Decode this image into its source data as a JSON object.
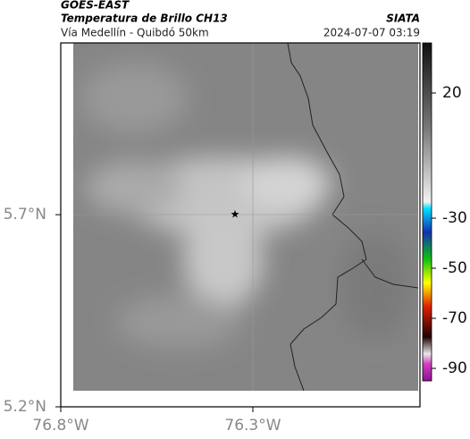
{
  "header": {
    "title": "GOES-EAST",
    "subtitle": "Temperatura de Brillo CH13",
    "source": "SIATA",
    "route": "Vía Medellín - Quibdó 50km",
    "datetime": "2024-07-07 03:19"
  },
  "map": {
    "lat_range": [
      5.2,
      6.147
    ],
    "lon_range": [
      -76.8,
      -75.865
    ],
    "lat_labels": [
      {
        "value": 5.7,
        "label": "5.7°N"
      },
      {
        "value": 5.2,
        "label": "5.2°N"
      }
    ],
    "lon_labels": [
      {
        "value": -76.8,
        "label": "76.8°W"
      },
      {
        "value": -76.3,
        "label": "76.3°W"
      }
    ]
  },
  "colorbar": {
    "range": [
      40,
      -95
    ],
    "ticks": [
      20,
      -30,
      -50,
      -70,
      -90
    ]
  }
}
